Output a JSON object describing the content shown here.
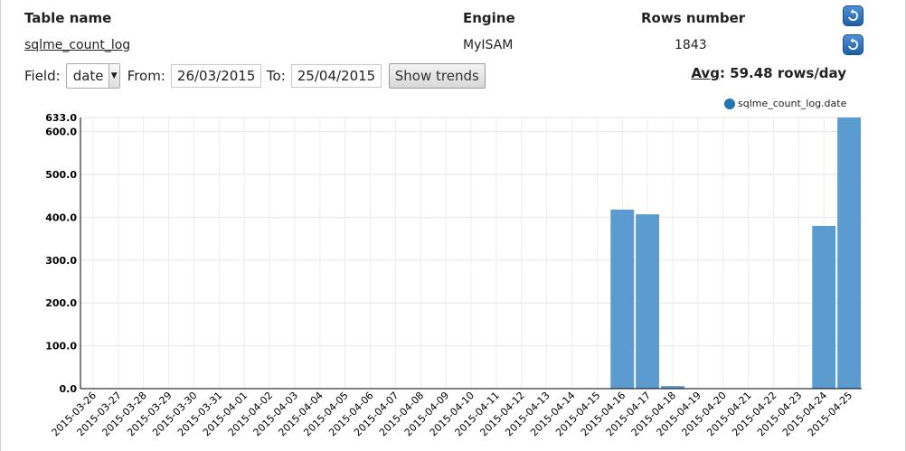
{
  "table": {
    "headers": {
      "name": "Table name",
      "engine": "Engine",
      "rows": "Rows number"
    },
    "row": {
      "name": "sqlme_count_log",
      "engine": "MyISAM",
      "rows": "1843"
    }
  },
  "controls": {
    "field_label": "Field:",
    "field_value": "date",
    "from_label": "From:",
    "from_value": "26/03/2015",
    "to_label": "To:",
    "to_value": "25/04/2015",
    "button_label": "Show trends"
  },
  "avg": {
    "label": "Avg",
    "value": ": 59.48 rows/day"
  },
  "icons": {
    "refresh": "refresh-icon"
  },
  "colors": {
    "bar": "#5b9bd0",
    "legend": "#1f77b4"
  },
  "chart_data": {
    "type": "bar",
    "categories": [
      "2015-03-26",
      "2015-03-27",
      "2015-03-28",
      "2015-03-29",
      "2015-03-30",
      "2015-03-31",
      "2015-04-01",
      "2015-04-02",
      "2015-04-03",
      "2015-04-04",
      "2015-04-05",
      "2015-04-06",
      "2015-04-07",
      "2015-04-08",
      "2015-04-09",
      "2015-04-10",
      "2015-04-11",
      "2015-04-12",
      "2015-04-13",
      "2015-04-14",
      "2015-04-15",
      "2015-04-16",
      "2015-04-17",
      "2015-04-18",
      "2015-04-19",
      "2015-04-20",
      "2015-04-21",
      "2015-04-22",
      "2015-04-23",
      "2015-04-24",
      "2015-04-25"
    ],
    "series": [
      {
        "name": "sqlme_count_log.date",
        "values": [
          0,
          0,
          0,
          0,
          0,
          0,
          0,
          0,
          0,
          0,
          0,
          0,
          0,
          0,
          0,
          0,
          0,
          0,
          0,
          0,
          0,
          418,
          407,
          6,
          0,
          0,
          0,
          0,
          0,
          380,
          633
        ]
      }
    ],
    "yticks": [
      "0.0",
      "100.0",
      "200.0",
      "300.0",
      "400.0",
      "500.0",
      "600.0",
      "633.0"
    ],
    "ytick_values": [
      0,
      100,
      200,
      300,
      400,
      500,
      600,
      633
    ],
    "ylim": [
      0,
      633
    ],
    "grid": true,
    "legend": "top-right"
  }
}
